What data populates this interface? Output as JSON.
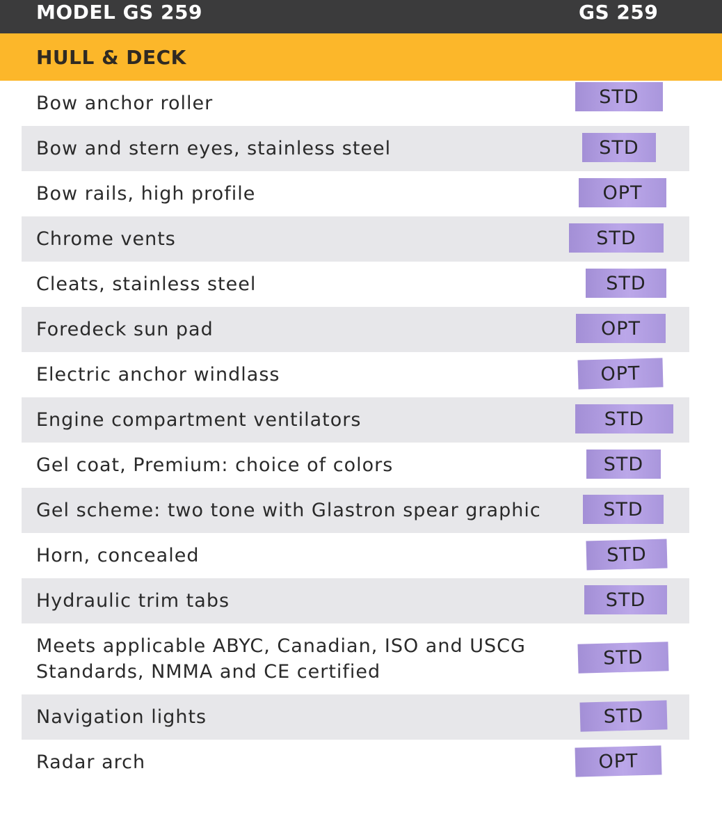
{
  "header": {
    "model_label": "MODEL GS 259",
    "column_label": "GS 259"
  },
  "section": {
    "title": "HULL & DECK"
  },
  "colors": {
    "header_bg": "#3b3b3c",
    "section_bg": "#fcb72a",
    "alt_row_bg": "#e7e7ea",
    "badge_purple": "#b09ce0"
  },
  "rows": [
    {
      "feature": "Bow anchor roller",
      "value": "STD"
    },
    {
      "feature": "Bow and stern eyes, stainless steel",
      "value": "STD"
    },
    {
      "feature": "Bow rails, high profile",
      "value": "OPT"
    },
    {
      "feature": "Chrome vents",
      "value": "STD"
    },
    {
      "feature": "Cleats, stainless steel",
      "value": "STD"
    },
    {
      "feature": "Foredeck sun pad",
      "value": "OPT"
    },
    {
      "feature": "Electric anchor windlass",
      "value": "OPT"
    },
    {
      "feature": "Engine compartment ventilators",
      "value": "STD"
    },
    {
      "feature": "Gel coat, Premium: choice of colors",
      "value": "STD"
    },
    {
      "feature": "Gel scheme: two tone with Glastron spear graphic",
      "value": "STD"
    },
    {
      "feature": "Horn, concealed",
      "value": "STD"
    },
    {
      "feature": "Hydraulic trim tabs",
      "value": "STD"
    },
    {
      "feature": "Meets applicable ABYC, Canadian, ISO and USCG Standards, NMMA and CE certified",
      "value": "STD"
    },
    {
      "feature": "Navigation lights",
      "value": "STD"
    },
    {
      "feature": "Radar arch",
      "value": "OPT"
    }
  ]
}
